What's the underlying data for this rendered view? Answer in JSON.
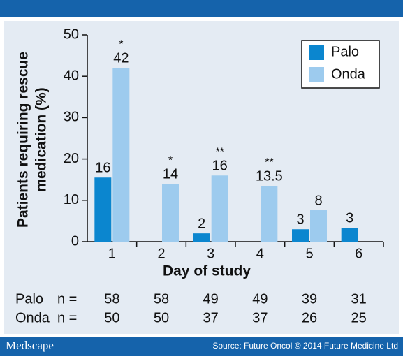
{
  "chart_data": {
    "type": "bar",
    "ylabel": [
      "Patients requiring rescue",
      "medication (%)"
    ],
    "xlabel": "Day of study",
    "categories": [
      "1",
      "2",
      "3",
      "4",
      "5",
      "6"
    ],
    "series": [
      {
        "name": "Palo",
        "color": "#0b86cf",
        "values": [
          15.5,
          null,
          2,
          null,
          3,
          3.3
        ],
        "value_labels": [
          "16",
          null,
          "2",
          null,
          "3",
          "3"
        ]
      },
      {
        "name": "Onda",
        "color": "#9dcbee",
        "values": [
          42,
          14,
          16,
          13.5,
          7.6,
          null
        ],
        "value_labels": [
          "42",
          "14",
          "16",
          "13.5",
          "8",
          null
        ]
      }
    ],
    "significance": [
      "*",
      "*",
      "**",
      "**",
      null,
      null
    ],
    "ylim": [
      0,
      50
    ],
    "yticks": [
      0,
      10,
      20,
      30,
      40,
      50
    ],
    "legend": "top-right",
    "n_table": [
      {
        "name": "Palo",
        "prefix": "n =",
        "values": [
          58,
          58,
          49,
          49,
          39,
          31
        ]
      },
      {
        "name": "Onda",
        "prefix": "n =",
        "values": [
          50,
          50,
          37,
          37,
          26,
          25
        ]
      }
    ]
  },
  "footer": {
    "brand": "Medscape",
    "source": "Source: Future Oncol © 2014 Future Medicine Ltd"
  }
}
